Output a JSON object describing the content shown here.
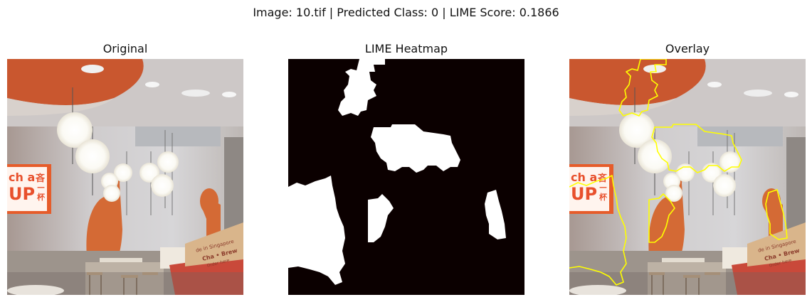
{
  "figure": {
    "suptitle": "Image: 10.tif | Predicted Class: 0 | LIME Score: 0.1866"
  },
  "panels": [
    {
      "title": "Original"
    },
    {
      "title": "LIME Heatmap"
    },
    {
      "title": "Overlay"
    }
  ],
  "scene": {
    "sign_text_line1": "ch a",
    "sign_text_line1_cjk": "吝",
    "sign_text_line2": "UP",
    "sign_text_line2_cjk": "杯",
    "sign_text_line2_dash": "—",
    "counter_text_1": "de in Singapore",
    "counter_text_2": "Cha • Brew",
    "counter_text_3": "Order here",
    "colors": {
      "wall": "#c9c4c5",
      "ceiling_orange": "#c9572f",
      "bear_orange": "#d46a35",
      "lamp_glow": "#fbfbf8",
      "counter_red": "#c9493a",
      "heatmap_bg": "#0b0000",
      "heatmap_fg": "#ffffff",
      "boundary": "#ffff00"
    }
  }
}
